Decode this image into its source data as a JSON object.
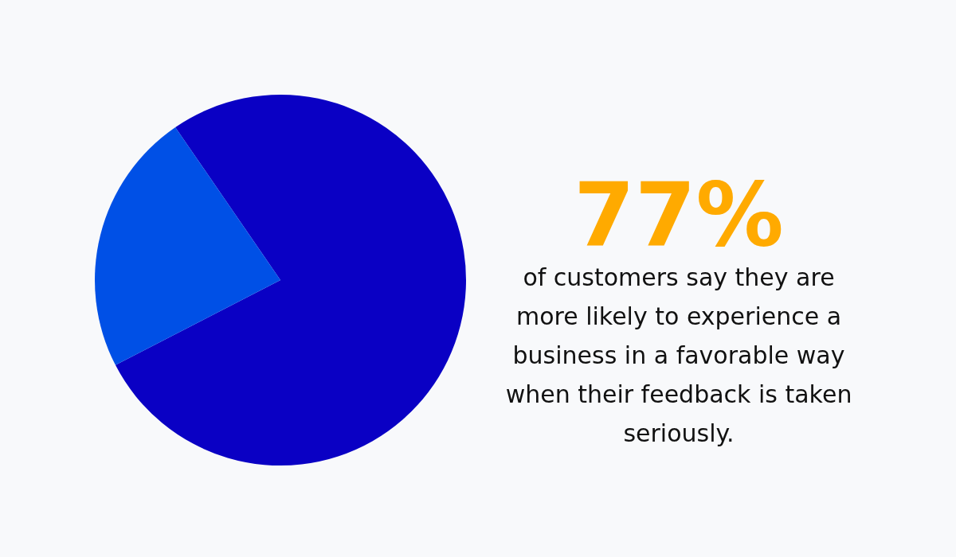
{
  "chart_data": {
    "type": "pie",
    "categories": [
      null,
      null
    ],
    "values": [
      77,
      23
    ],
    "colors": [
      "#0a00c4",
      "#0050e6"
    ],
    "annotations": [
      "77%",
      "of customers say they are more likely to experience a business in a favorable way when their feedback is taken seriously."
    ],
    "legend": false
  }
}
